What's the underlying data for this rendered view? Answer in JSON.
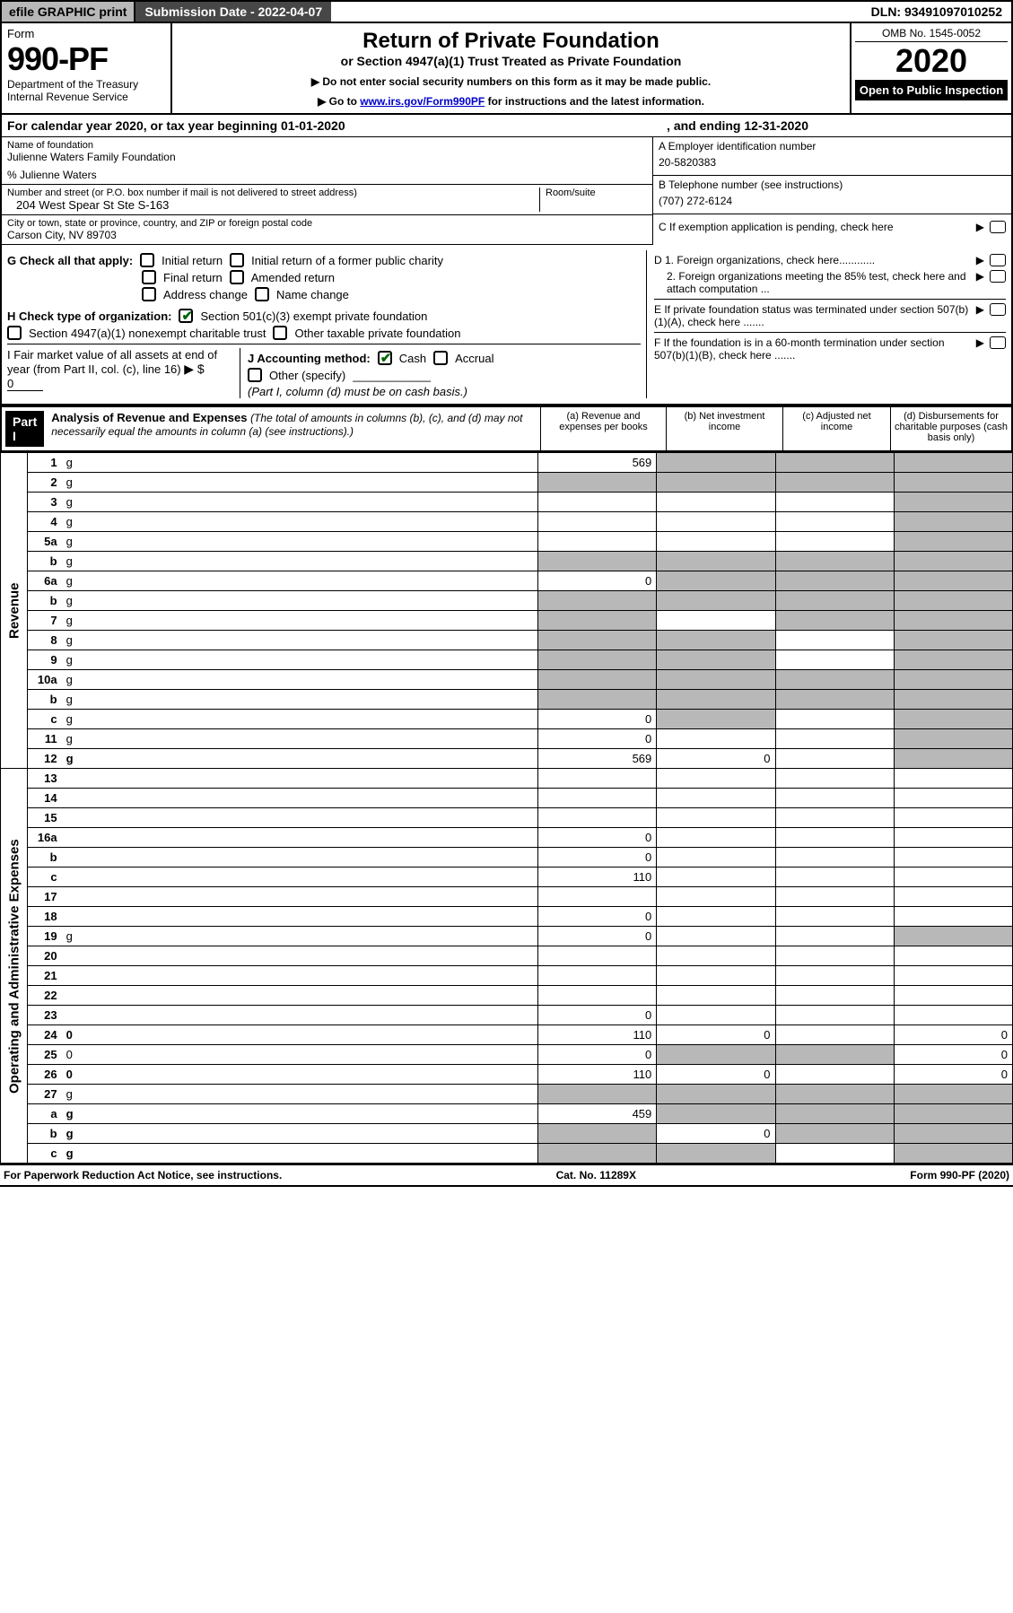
{
  "top_bar": {
    "efile": "efile GRAPHIC print",
    "submission_label": "Submission Date - 2022-04-07",
    "dln": "DLN: 93491097010252"
  },
  "header": {
    "form_label": "Form",
    "form_number": "990-PF",
    "dept": "Department of the Treasury",
    "irs": "Internal Revenue Service",
    "title": "Return of Private Foundation",
    "subtitle": "or Section 4947(a)(1) Trust Treated as Private Foundation",
    "instr1": "▶ Do not enter social security numbers on this form as it may be made public.",
    "instr2": "▶ Go to www.irs.gov/Form990PF for instructions and the latest information.",
    "omb": "OMB No. 1545-0052",
    "year": "2020",
    "open": "Open to Public Inspection"
  },
  "cal_year": {
    "prefix": "For calendar year 2020, or tax year beginning 01-01-2020",
    "mid": ", and ending 12-31-2020"
  },
  "foundation": {
    "name_label": "Name of foundation",
    "name": "Julienne Waters Family Foundation",
    "care_of": "% Julienne Waters",
    "addr_label": "Number and street (or P.O. box number if mail is not delivered to street address)",
    "addr": "204 West Spear St Ste S-163",
    "room_label": "Room/suite",
    "city_label": "City or town, state or province, country, and ZIP or foreign postal code",
    "city": "Carson City, NV  89703"
  },
  "right_info": {
    "a_label": "A Employer identification number",
    "a_val": "20-5820383",
    "b_label": "B Telephone number (see instructions)",
    "b_val": "(707) 272-6124",
    "c_label": "C If exemption application is pending, check here",
    "d1": "D 1. Foreign organizations, check here............",
    "d2": "2. Foreign organizations meeting the 85% test, check here and attach computation ...",
    "e": "E  If private foundation status was terminated under section 507(b)(1)(A), check here .......",
    "f": "F  If the foundation is in a 60-month termination under section 507(b)(1)(B), check here .......",
    "arrow": "▶"
  },
  "section_g": {
    "label": "G Check all that apply:",
    "opts": [
      "Initial return",
      "Initial return of a former public charity",
      "Final return",
      "Amended return",
      "Address change",
      "Name change"
    ]
  },
  "section_h": {
    "label": "H Check type of organization:",
    "opt1": "Section 501(c)(3) exempt private foundation",
    "opt2": "Section 4947(a)(1) nonexempt charitable trust",
    "opt3": "Other taxable private foundation"
  },
  "section_i": {
    "label": "I Fair market value of all assets at end of year (from Part II, col. (c), line 16)",
    "arrow": "▶ $",
    "val": "0"
  },
  "section_j": {
    "label": "J Accounting method:",
    "cash": "Cash",
    "accrual": "Accrual",
    "other": "Other (specify)",
    "note": "(Part I, column (d) must be on cash basis.)"
  },
  "part1": {
    "tag": "Part I",
    "title": "Analysis of Revenue and Expenses",
    "note": "(The total of amounts in columns (b), (c), and (d) may not necessarily equal the amounts in column (a) (see instructions).)",
    "col_a": "(a) Revenue and expenses per books",
    "col_b": "(b) Net investment income",
    "col_c": "(c) Adjusted net income",
    "col_d": "(d) Disbursements for charitable purposes (cash basis only)"
  },
  "side_labels": {
    "revenue": "Revenue",
    "expenses": "Operating and Administrative Expenses"
  },
  "rows": [
    {
      "n": "1",
      "d": "g",
      "a": "569",
      "b": "g",
      "c": "g"
    },
    {
      "n": "2",
      "d": "g",
      "a": "g",
      "b": "g",
      "c": "g"
    },
    {
      "n": "3",
      "d": "g",
      "a": "",
      "b": "",
      "c": ""
    },
    {
      "n": "4",
      "d": "g",
      "a": "",
      "b": "",
      "c": ""
    },
    {
      "n": "5a",
      "d": "g",
      "a": "",
      "b": "",
      "c": ""
    },
    {
      "n": "b",
      "d": "g",
      "a": "g",
      "b": "g",
      "c": "g"
    },
    {
      "n": "6a",
      "d": "g",
      "a": "0",
      "b": "g",
      "c": "g"
    },
    {
      "n": "b",
      "d": "g",
      "a": "g",
      "b": "g",
      "c": "g"
    },
    {
      "n": "7",
      "d": "g",
      "a": "g",
      "b": "",
      "c": "g"
    },
    {
      "n": "8",
      "d": "g",
      "a": "g",
      "b": "g",
      "c": ""
    },
    {
      "n": "9",
      "d": "g",
      "a": "g",
      "b": "g",
      "c": ""
    },
    {
      "n": "10a",
      "d": "g",
      "a": "g",
      "b": "g",
      "c": "g"
    },
    {
      "n": "b",
      "d": "g",
      "a": "g",
      "b": "g",
      "c": "g"
    },
    {
      "n": "c",
      "d": "g",
      "a": "0",
      "b": "g",
      "c": ""
    },
    {
      "n": "11",
      "d": "g",
      "a": "0",
      "b": "",
      "c": ""
    },
    {
      "n": "12",
      "d": "g",
      "a": "569",
      "b": "0",
      "c": "",
      "bold": true
    },
    {
      "n": "13",
      "d": "",
      "a": "",
      "b": "",
      "c": ""
    },
    {
      "n": "14",
      "d": "",
      "a": "",
      "b": "",
      "c": ""
    },
    {
      "n": "15",
      "d": "",
      "a": "",
      "b": "",
      "c": ""
    },
    {
      "n": "16a",
      "d": "",
      "a": "0",
      "b": "",
      "c": ""
    },
    {
      "n": "b",
      "d": "",
      "a": "0",
      "b": "",
      "c": ""
    },
    {
      "n": "c",
      "d": "",
      "a": "110",
      "b": "",
      "c": ""
    },
    {
      "n": "17",
      "d": "",
      "a": "",
      "b": "",
      "c": ""
    },
    {
      "n": "18",
      "d": "",
      "a": "0",
      "b": "",
      "c": ""
    },
    {
      "n": "19",
      "d": "g",
      "a": "0",
      "b": "",
      "c": ""
    },
    {
      "n": "20",
      "d": "",
      "a": "",
      "b": "",
      "c": ""
    },
    {
      "n": "21",
      "d": "",
      "a": "",
      "b": "",
      "c": ""
    },
    {
      "n": "22",
      "d": "",
      "a": "",
      "b": "",
      "c": ""
    },
    {
      "n": "23",
      "d": "",
      "a": "0",
      "b": "",
      "c": ""
    },
    {
      "n": "24",
      "d": "0",
      "a": "110",
      "b": "0",
      "c": "",
      "bold": true
    },
    {
      "n": "25",
      "d": "0",
      "a": "0",
      "b": "g",
      "c": "g"
    },
    {
      "n": "26",
      "d": "0",
      "a": "110",
      "b": "0",
      "c": "",
      "bold": true
    },
    {
      "n": "27",
      "d": "g",
      "a": "g",
      "b": "g",
      "c": "g"
    },
    {
      "n": "a",
      "d": "g",
      "a": "459",
      "b": "g",
      "c": "g",
      "bold": true
    },
    {
      "n": "b",
      "d": "g",
      "a": "g",
      "b": "0",
      "c": "g",
      "bold": true
    },
    {
      "n": "c",
      "d": "g",
      "a": "g",
      "b": "g",
      "c": "",
      "bold": true
    }
  ],
  "footer": {
    "left": "For Paperwork Reduction Act Notice, see instructions.",
    "mid": "Cat. No. 11289X",
    "right": "Form 990-PF (2020)"
  },
  "colors": {
    "grey": "#b8b8b8",
    "dark": "#474747",
    "link": "#0000cc",
    "check": "#006600"
  }
}
